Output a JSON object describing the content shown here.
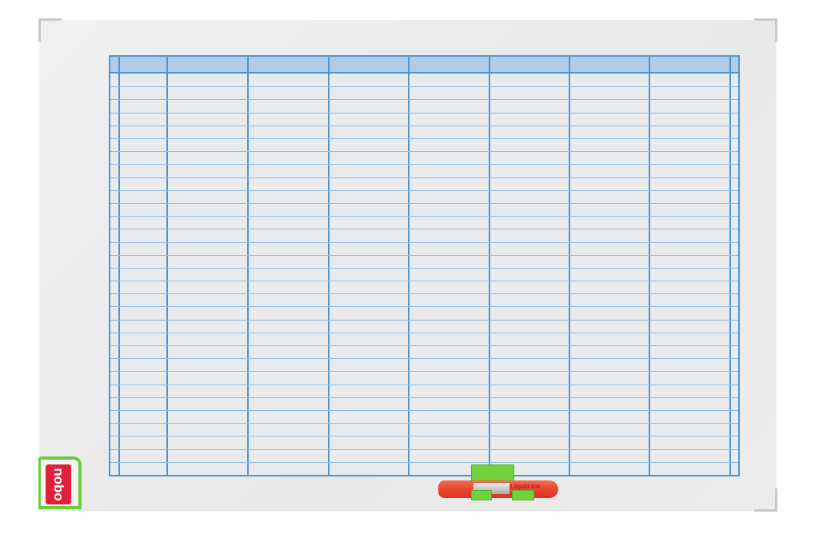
{
  "product": {
    "brand_logo": "nobo",
    "marker_label": "Liquid Ink",
    "colors": {
      "grid_line": "#4a97d6",
      "header_fill": "#b2cbe6",
      "board": "#ececec",
      "accent_green": "#6ccc3a",
      "logo_red": "#e0203a",
      "marker_red": "#e8402a"
    },
    "planner": {
      "columns": 9,
      "rows": 31
    }
  }
}
